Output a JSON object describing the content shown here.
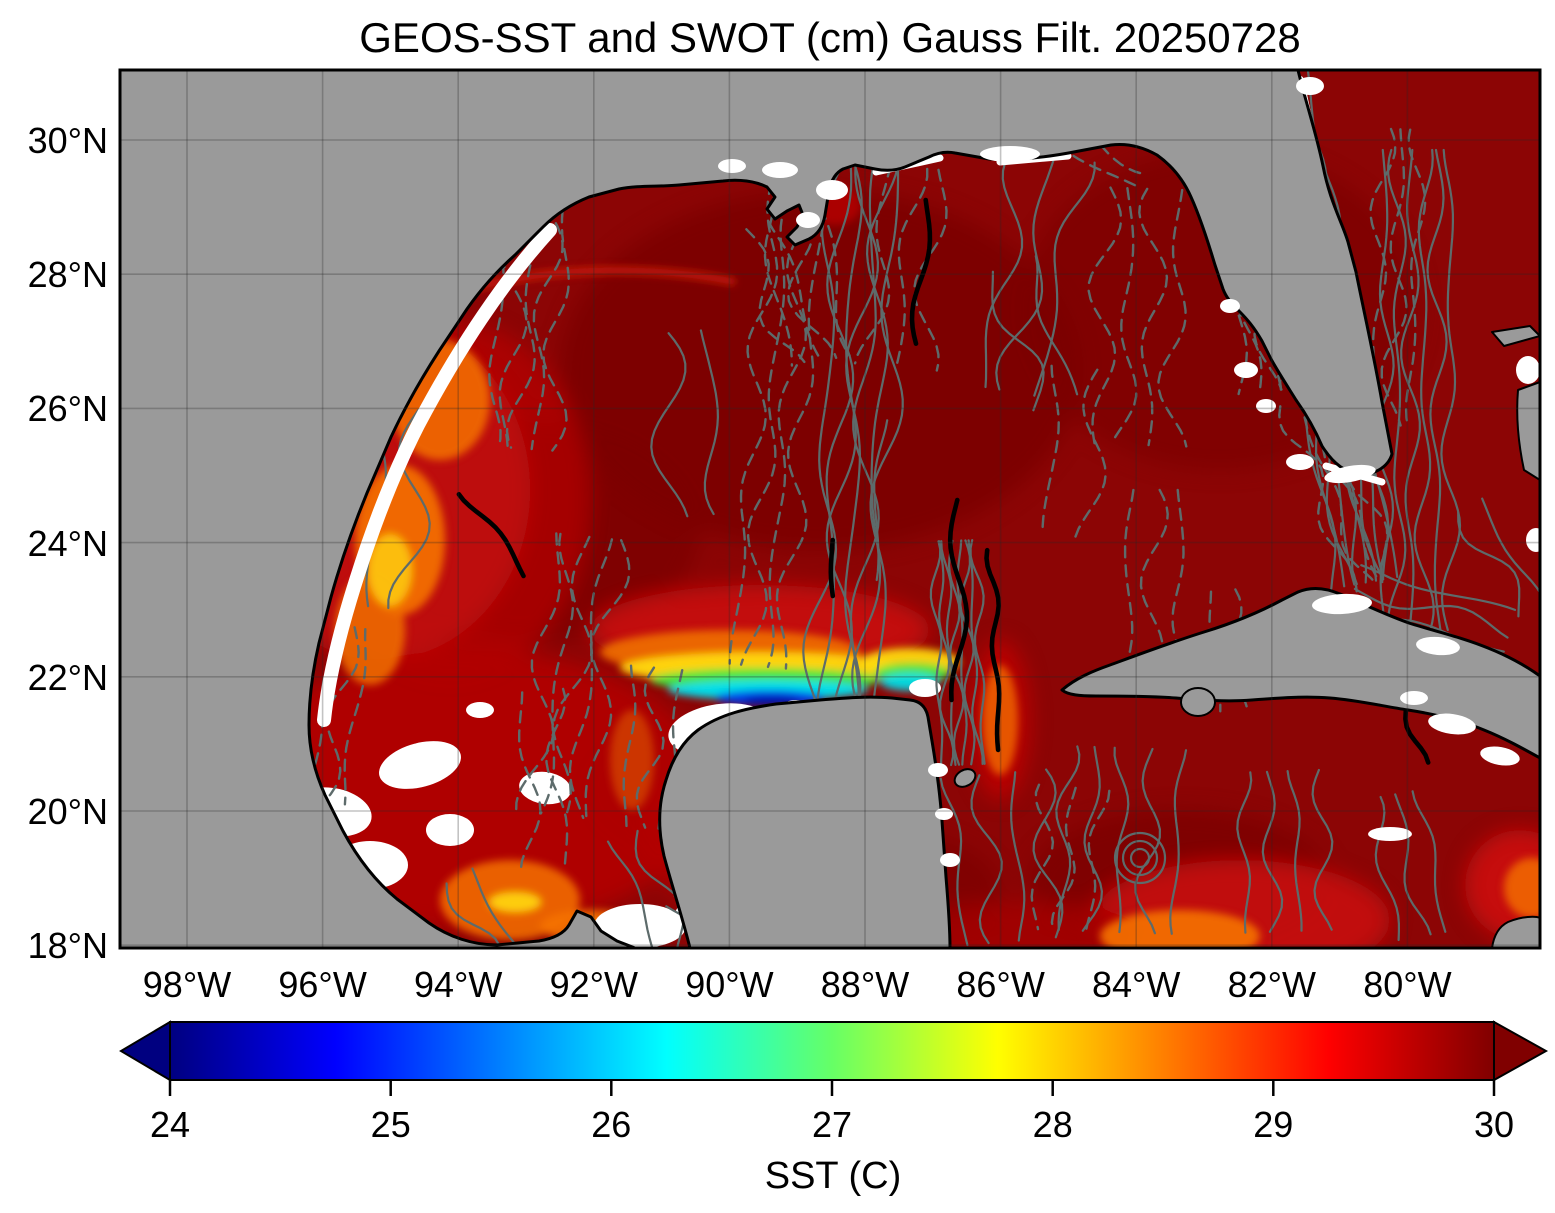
{
  "figure": {
    "title": "GEOS-SST  and SWOT (cm) Gauss Filt. 20250728"
  },
  "axes": {
    "y_ticks": [
      "30°N",
      "28°N",
      "26°N",
      "24°N",
      "22°N",
      "20°N",
      "18°N"
    ],
    "x_ticks": [
      "98°W",
      "96°W",
      "94°W",
      "92°W",
      "90°W",
      "88°W",
      "86°W",
      "84°W",
      "82°W",
      "80°W"
    ]
  },
  "colorbar": {
    "label": "SST (C)",
    "ticks": [
      "24",
      "25",
      "26",
      "27",
      "28",
      "29",
      "30"
    ],
    "colormap": "jet",
    "extend": "both",
    "under_arrow_color": "#000080",
    "over_arrow_color": "#800000"
  },
  "map": {
    "land_color": "#9a9a9a",
    "ocean_dominant_color": "#8c0505",
    "no_data_color": "#ffffff",
    "contour_color": "#5d6b6b",
    "contour_highlight_color": "#000000",
    "gridline_color": "#8a8a8a"
  },
  "chart_data": {
    "type": "heatmap",
    "title": "GEOS-SST  and SWOT (cm) Gauss Filt. 20250728",
    "date": "20250728",
    "region": "Gulf of Mexico, NW Caribbean and western Atlantic",
    "x_tick_labels": [
      "98°W",
      "96°W",
      "94°W",
      "92°W",
      "90°W",
      "88°W",
      "86°W",
      "84°W",
      "82°W",
      "80°W"
    ],
    "y_tick_labels": [
      "30°N",
      "28°N",
      "26°N",
      "24°N",
      "22°N",
      "20°N",
      "18°N"
    ],
    "grid": true,
    "colorbar": {
      "label": "SST (C)",
      "range": [
        24,
        30
      ],
      "tick_values": [
        24,
        25,
        26,
        27,
        28,
        29,
        30
      ],
      "colormap": "jet",
      "extend": "both",
      "jet_stops": [
        "#000080",
        "#0000ff",
        "#00ffff",
        "#ffff00",
        "#ff0000",
        "#800000"
      ]
    },
    "layers": [
      {
        "name": "GEOS sea surface temperature",
        "units": "C",
        "rendering": "filled jet colormap; most of the basin saturated at >= 30 C (dark red)"
      },
      {
        "name": "SWOT sea surface height contours",
        "units": "cm",
        "rendering": "gray contour lines over ocean: dashed = negative, solid = positive, thick black = highlighted level; dense bundles along Loop Current, Yucatan Channel and Gulf Stream"
      }
    ],
    "notable_features": [
      {
        "name": "Cold upwelling band north of Yucatan",
        "approx_location": "21.5-22N, 87-91W",
        "sst_c": "24-27 (blue-cyan-green-yellow band)"
      },
      {
        "name": "Warm eddy filaments off Texas-Tamaulipas coast",
        "approx_location": "24-28N, 96-97.5W",
        "sst_c": "28-29.5 (red-orange swirls)"
      },
      {
        "name": "Bay of Campeche warm patch",
        "approx_location": "18-19N, 92-94W",
        "sst_c": "28-30 with small yellow core"
      },
      {
        "name": "Caribbean warm patch south of Cuba",
        "approx_location": "18-19.5N, 82-84W",
        "sst_c": "29-30"
      },
      {
        "name": "Cloud / no-data gaps",
        "rendering": "white patches along coasts and in Bay of Campeche"
      }
    ]
  }
}
